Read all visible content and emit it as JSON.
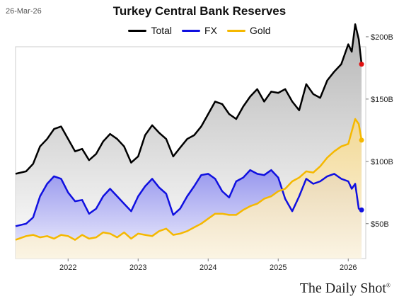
{
  "header": {
    "date": "26-Mar-26",
    "title": "Turkey Central Bank Reserves"
  },
  "brand": {
    "text": "The Daily Shot",
    "mark": "®"
  },
  "colors": {
    "total": "#000000",
    "fx": "#1010e0",
    "gold": "#f5b800",
    "end_total": "#e01010",
    "end_fx": "#1010e0",
    "end_gold": "#f5b800"
  },
  "chart_data": {
    "type": "line",
    "title": "Turkey Central Bank Reserves",
    "xlabel": "",
    "ylabel": "",
    "x_ticks": [
      "2022",
      "2023",
      "2024",
      "2025",
      "2026"
    ],
    "y_ticks": [
      "$50B",
      "$100B",
      "$150B",
      "$200B"
    ],
    "y_tick_values": [
      50,
      100,
      150,
      200
    ],
    "xlim": [
      2021.25,
      2026.25
    ],
    "ylim": [
      22,
      192
    ],
    "grid": false,
    "legend_position": "top",
    "series": [
      {
        "name": "Total",
        "color": "#000000",
        "x": [
          2021.25,
          2021.4,
          2021.5,
          2021.6,
          2021.7,
          2021.8,
          2021.9,
          2022.0,
          2022.1,
          2022.2,
          2022.3,
          2022.4,
          2022.5,
          2022.6,
          2022.7,
          2022.8,
          2022.9,
          2023.0,
          2023.1,
          2023.2,
          2023.3,
          2023.4,
          2023.5,
          2023.6,
          2023.7,
          2023.8,
          2023.9,
          2024.0,
          2024.1,
          2024.2,
          2024.3,
          2024.4,
          2024.5,
          2024.6,
          2024.7,
          2024.8,
          2024.9,
          2025.0,
          2025.1,
          2025.2,
          2025.3,
          2025.4,
          2025.5,
          2025.6,
          2025.7,
          2025.8,
          2025.9,
          2026.0,
          2026.05,
          2026.1,
          2026.15,
          2026.19
        ],
        "values": [
          90,
          92,
          98,
          112,
          118,
          126,
          128,
          118,
          108,
          110,
          101,
          106,
          116,
          122,
          118,
          112,
          99,
          104,
          121,
          129,
          123,
          118,
          104,
          111,
          118,
          121,
          128,
          138,
          148,
          146,
          138,
          134,
          144,
          152,
          158,
          148,
          156,
          155,
          158,
          148,
          141,
          162,
          154,
          151,
          165,
          172,
          178,
          194,
          188,
          210,
          198,
          178
        ]
      },
      {
        "name": "FX",
        "color": "#1010e0",
        "x": [
          2021.25,
          2021.4,
          2021.5,
          2021.6,
          2021.7,
          2021.8,
          2021.9,
          2022.0,
          2022.1,
          2022.2,
          2022.3,
          2022.4,
          2022.5,
          2022.6,
          2022.7,
          2022.8,
          2022.9,
          2023.0,
          2023.1,
          2023.2,
          2023.3,
          2023.4,
          2023.5,
          2023.6,
          2023.7,
          2023.8,
          2023.9,
          2024.0,
          2024.1,
          2024.2,
          2024.3,
          2024.4,
          2024.5,
          2024.6,
          2024.7,
          2024.8,
          2024.9,
          2025.0,
          2025.1,
          2025.2,
          2025.3,
          2025.4,
          2025.5,
          2025.6,
          2025.7,
          2025.8,
          2025.9,
          2026.0,
          2026.05,
          2026.1,
          2026.15,
          2026.19
        ],
        "values": [
          48,
          50,
          55,
          72,
          82,
          88,
          86,
          75,
          68,
          69,
          58,
          62,
          72,
          78,
          72,
          66,
          60,
          72,
          80,
          86,
          79,
          74,
          57,
          62,
          72,
          80,
          89,
          90,
          86,
          76,
          71,
          84,
          87,
          93,
          90,
          89,
          93,
          87,
          70,
          60,
          72,
          86,
          82,
          84,
          88,
          90,
          86,
          84,
          78,
          82,
          62,
          61
        ]
      },
      {
        "name": "Gold",
        "color": "#f5b800",
        "x": [
          2021.25,
          2021.4,
          2021.5,
          2021.6,
          2021.7,
          2021.8,
          2021.9,
          2022.0,
          2022.1,
          2022.2,
          2022.3,
          2022.4,
          2022.5,
          2022.6,
          2022.7,
          2022.8,
          2022.9,
          2023.0,
          2023.1,
          2023.2,
          2023.3,
          2023.4,
          2023.5,
          2023.6,
          2023.7,
          2023.8,
          2023.9,
          2024.0,
          2024.1,
          2024.2,
          2024.3,
          2024.4,
          2024.5,
          2024.6,
          2024.7,
          2024.8,
          2024.9,
          2025.0,
          2025.1,
          2025.2,
          2025.3,
          2025.4,
          2025.5,
          2025.6,
          2025.7,
          2025.8,
          2025.9,
          2026.0,
          2026.05,
          2026.1,
          2026.15,
          2026.19
        ],
        "values": [
          37,
          40,
          41,
          39,
          40,
          38,
          41,
          40,
          37,
          41,
          38,
          39,
          43,
          42,
          39,
          43,
          38,
          42,
          41,
          40,
          44,
          46,
          41,
          42,
          44,
          47,
          50,
          54,
          58,
          58,
          57,
          57,
          61,
          64,
          66,
          70,
          72,
          76,
          78,
          84,
          87,
          92,
          91,
          96,
          103,
          108,
          112,
          114,
          124,
          134,
          130,
          117
        ]
      }
    ]
  }
}
